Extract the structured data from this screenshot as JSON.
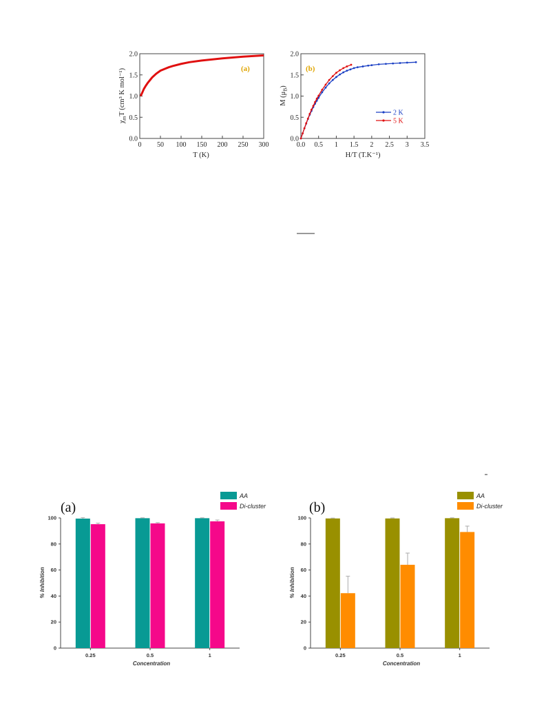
{
  "chart_data": [
    {
      "type": "line",
      "panel_label": "(a)",
      "xlabel": "T (K)",
      "ylabel_main": "χ",
      "ylabel_sub": "m",
      "ylabel_rest": "T (cm³ K mol⁻¹)",
      "xlim": [
        0,
        300
      ],
      "ylim": [
        0.0,
        2.0
      ],
      "x_ticks": [
        0,
        50,
        100,
        150,
        200,
        250,
        300
      ],
      "y_ticks": [
        0.0,
        0.5,
        1.0,
        1.5,
        2.0
      ],
      "y_tick_labels": [
        "0.0",
        "0.5",
        "1.0",
        "1.5",
        "2.0"
      ],
      "color": "#e01010",
      "x": [
        2,
        5,
        10,
        15,
        20,
        25,
        30,
        40,
        50,
        60,
        70,
        80,
        100,
        120,
        150,
        200,
        250,
        300
      ],
      "y": [
        1.0,
        1.06,
        1.17,
        1.25,
        1.32,
        1.38,
        1.44,
        1.53,
        1.6,
        1.64,
        1.68,
        1.71,
        1.76,
        1.8,
        1.84,
        1.89,
        1.93,
        1.96
      ]
    },
    {
      "type": "line",
      "panel_label": "(b)",
      "xlabel": "H/T (T.K⁻¹)",
      "ylabel": "M (μB)",
      "ylabel_main": "M (μ",
      "ylabel_sub": "B",
      "ylabel_rest": ")",
      "xlim": [
        0,
        3.5
      ],
      "ylim": [
        0.0,
        2.0
      ],
      "x_ticks": [
        0,
        0.5,
        1,
        1.5,
        2,
        2.5,
        3,
        3.5
      ],
      "x_tick_labels": [
        "0.0",
        "0.5",
        "1",
        "1.5",
        "2",
        "2.5",
        "3",
        "3.5"
      ],
      "y_ticks": [
        0.0,
        0.5,
        1.0,
        1.5,
        2.0
      ],
      "y_tick_labels": [
        "0.0",
        "0.5",
        "1.0",
        "1.5",
        "2.0"
      ],
      "legend_position": "bottom-right",
      "series": [
        {
          "name": "2 K",
          "color": "#1a3fc4",
          "x": [
            0,
            0.05,
            0.1,
            0.15,
            0.2,
            0.25,
            0.3,
            0.35,
            0.4,
            0.45,
            0.5,
            0.6,
            0.7,
            0.8,
            0.9,
            1.0,
            1.1,
            1.2,
            1.3,
            1.4,
            1.5,
            1.6,
            1.75,
            1.9,
            2.0,
            2.2,
            2.4,
            2.6,
            2.8,
            3.0,
            3.25
          ],
          "y": [
            0.0,
            0.12,
            0.24,
            0.35,
            0.46,
            0.56,
            0.65,
            0.74,
            0.82,
            0.89,
            0.96,
            1.09,
            1.2,
            1.3,
            1.38,
            1.45,
            1.51,
            1.56,
            1.6,
            1.63,
            1.66,
            1.68,
            1.7,
            1.72,
            1.73,
            1.75,
            1.76,
            1.77,
            1.78,
            1.79,
            1.8
          ]
        },
        {
          "name": "5 K",
          "color": "#e01010",
          "x": [
            0,
            0.05,
            0.1,
            0.15,
            0.2,
            0.25,
            0.3,
            0.35,
            0.4,
            0.45,
            0.5,
            0.6,
            0.7,
            0.8,
            0.9,
            1.0,
            1.1,
            1.2,
            1.3,
            1.42
          ],
          "y": [
            0.0,
            0.12,
            0.24,
            0.36,
            0.47,
            0.58,
            0.68,
            0.77,
            0.86,
            0.94,
            1.01,
            1.15,
            1.27,
            1.38,
            1.47,
            1.55,
            1.61,
            1.66,
            1.7,
            1.74
          ]
        }
      ]
    },
    {
      "type": "bar",
      "panel_label": "(a)",
      "categories": [
        "0.25",
        "0.5",
        "1"
      ],
      "xlabel": "Concentration",
      "ylabel": "% Inhibition",
      "ylim": [
        0,
        100
      ],
      "y_ticks": [
        0,
        20,
        40,
        60,
        80,
        100
      ],
      "legend_position": "top-right",
      "series": [
        {
          "name": "AA",
          "color": "#089a94",
          "values": [
            99.5,
            99.8,
            99.8
          ],
          "errors": [
            0.7,
            0.3,
            0.3
          ]
        },
        {
          "name": "Di-cluster",
          "color": "#f5088a",
          "values": [
            95.2,
            95.8,
            97.4
          ],
          "errors": [
            0.8,
            0.6,
            1.0
          ]
        }
      ]
    },
    {
      "type": "bar",
      "panel_label": "(b)",
      "categories": [
        "0.25",
        "0.5",
        "1"
      ],
      "xlabel": "Concentration",
      "ylabel": "% Inhibition",
      "ylim": [
        0,
        100
      ],
      "y_ticks": [
        0,
        20,
        40,
        60,
        80,
        100
      ],
      "legend_position": "top-right",
      "series": [
        {
          "name": "AA",
          "color": "#999000",
          "values": [
            99.6,
            99.6,
            99.8
          ],
          "errors": [
            0.3,
            0.4,
            0.3
          ]
        },
        {
          "name": "Di-cluster",
          "color": "#ff8c00",
          "values": [
            42.2,
            64.0,
            89.2
          ],
          "errors": [
            13.0,
            9.0,
            4.5
          ]
        }
      ]
    }
  ]
}
